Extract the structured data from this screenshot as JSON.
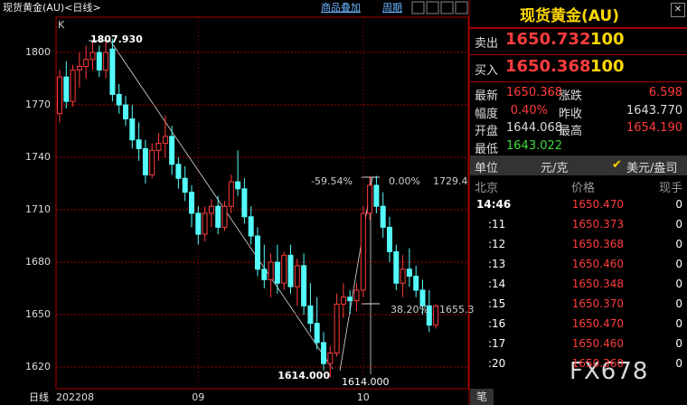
{
  "toolbar": {
    "title": "现货黄金(AU)<日线>",
    "overlay": "商品叠加",
    "period": "周期"
  },
  "chart_data": {
    "type": "candlestick",
    "ylabel": "K",
    "period_label": "日线",
    "categories": [
      "202208",
      null,
      null,
      null,
      null,
      null,
      null,
      null,
      null,
      null,
      null,
      null,
      null,
      null,
      null,
      null,
      null,
      null,
      null,
      null,
      null,
      "09",
      null,
      null,
      null,
      null,
      null,
      null,
      null,
      null,
      null,
      null,
      null,
      null,
      null,
      null,
      null,
      null,
      null,
      null,
      null,
      null,
      null,
      null,
      null,
      null,
      "10",
      null,
      null,
      null,
      null,
      null,
      null,
      null,
      null,
      null,
      null,
      null
    ],
    "open": [
      1765,
      1786,
      1772,
      1790,
      1792,
      1796,
      1800,
      1790,
      1802,
      1776,
      1770,
      1762,
      1750,
      1745,
      1730,
      1744,
      1748,
      1752,
      1736,
      1728,
      1720,
      1708,
      1696,
      1708,
      1712,
      1700,
      1712,
      1726,
      1722,
      1706,
      1695,
      1676,
      1670,
      1680,
      1668,
      1684,
      1666,
      1678,
      1655,
      1645,
      1634,
      1622,
      1628,
      1656,
      1660,
      1658,
      1664,
      1708,
      1724,
      1712,
      1700,
      1686,
      1668,
      1676,
      1672,
      1664,
      1655,
      1644
    ],
    "high": [
      1790,
      1795,
      1793,
      1800,
      1804,
      1806,
      1804,
      1806,
      1807.93,
      1782,
      1775,
      1770,
      1760,
      1750,
      1748,
      1754,
      1764,
      1758,
      1740,
      1735,
      1724,
      1712,
      1712,
      1716,
      1718,
      1715,
      1730,
      1744,
      1728,
      1712,
      1700,
      1690,
      1685,
      1690,
      1686,
      1690,
      1682,
      1685,
      1668,
      1660,
      1640,
      1632,
      1662,
      1668,
      1664,
      1668,
      1712,
      1729,
      1729.4,
      1720,
      1706,
      1690,
      1684,
      1688,
      1678,
      1670,
      1664,
      1656
    ],
    "low": [
      1760,
      1768,
      1769,
      1780,
      1785,
      1790,
      1786,
      1785,
      1772,
      1765,
      1758,
      1745,
      1738,
      1725,
      1728,
      1738,
      1740,
      1730,
      1722,
      1715,
      1700,
      1690,
      1692,
      1700,
      1696,
      1698,
      1708,
      1718,
      1702,
      1690,
      1672,
      1665,
      1660,
      1662,
      1664,
      1662,
      1655,
      1650,
      1640,
      1630,
      1618,
      1614,
      1626,
      1648,
      1650,
      1652,
      1660,
      1704,
      1708,
      1694,
      1680,
      1664,
      1660,
      1666,
      1660,
      1650,
      1640,
      1642
    ],
    "close": [
      1786,
      1772,
      1790,
      1792,
      1796,
      1800,
      1790,
      1800,
      1776,
      1770,
      1762,
      1750,
      1745,
      1730,
      1744,
      1748,
      1752,
      1736,
      1728,
      1720,
      1708,
      1696,
      1708,
      1712,
      1700,
      1712,
      1726,
      1722,
      1706,
      1695,
      1676,
      1670,
      1680,
      1668,
      1684,
      1666,
      1678,
      1655,
      1645,
      1634,
      1622,
      1628,
      1656,
      1660,
      1658,
      1664,
      1708,
      1724,
      1712,
      1700,
      1686,
      1668,
      1676,
      1672,
      1664,
      1655,
      1644,
      1655
    ],
    "up_color": "#ff3c3c",
    "down_color": "#54fcfc",
    "ylim": [
      1607.6,
      1820.2
    ],
    "yticks": [
      1620,
      1650,
      1680,
      1710,
      1740,
      1770,
      1800
    ],
    "grid": true,
    "annotations": [
      "1807.930",
      "1614.000",
      "1614.000",
      "-59.54%",
      "0.00%",
      "1729.4",
      "38.20%",
      "1655.3"
    ]
  },
  "quote": {
    "title": "现货黄金(AU)",
    "sell": {
      "label": "卖出",
      "price": "1650.732",
      "volume": "100"
    },
    "buy": {
      "label": "买入",
      "price": "1650.368",
      "volume": "100"
    },
    "stats": [
      [
        "最新",
        "1650.368",
        "涨跌",
        "6.598"
      ],
      [
        "幅度",
        "0.40%",
        "昨收",
        "1643.770"
      ],
      [
        "开盘",
        "1644.068",
        "最高",
        "1654.190"
      ],
      [
        "最低",
        "1643.022"
      ]
    ],
    "unit": {
      "label": "单位",
      "cny": "元/克",
      "usd": "美元/盎司"
    },
    "ticks_header": [
      "北京",
      "价格",
      "现手"
    ],
    "ticks": [
      [
        "14:46",
        "1650.470",
        "0"
      ],
      [
        ":11",
        "1650.373",
        "0"
      ],
      [
        ":12",
        "1650.368",
        "0"
      ],
      [
        ":13",
        "1650.460",
        "0"
      ],
      [
        ":14",
        "1650.348",
        "0"
      ],
      [
        ":15",
        "1650.370",
        "0"
      ],
      [
        ":16",
        "1650.470",
        "0"
      ],
      [
        ":17",
        "1650.460",
        "0"
      ],
      [
        ":20",
        "1650.360",
        "0"
      ]
    ]
  },
  "tab": "笔",
  "watermark": "FX678"
}
